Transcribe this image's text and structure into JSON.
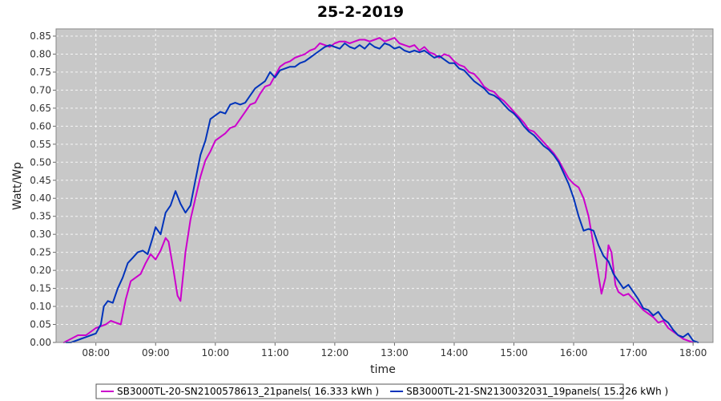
{
  "chart_data": {
    "type": "line",
    "title": "25-2-2019",
    "xlabel": "time",
    "ylabel": "Watt/Wp",
    "xlim": [
      "07:20",
      "18:20"
    ],
    "ylim": [
      0,
      0.87
    ],
    "x_ticks": [
      "08:00",
      "09:00",
      "10:00",
      "11:00",
      "12:00",
      "13:00",
      "14:00",
      "15:00",
      "16:00",
      "17:00",
      "18:00"
    ],
    "y_ticks": [
      "0.00",
      "0.05",
      "0.10",
      "0.15",
      "0.20",
      "0.25",
      "0.30",
      "0.35",
      "0.40",
      "0.45",
      "0.50",
      "0.55",
      "0.60",
      "0.65",
      "0.70",
      "0.75",
      "0.80",
      "0.85"
    ],
    "grid": true,
    "legend_position": "bottom",
    "background_color": "#c8c8c8",
    "series": [
      {
        "name": "SB3000TL-20-SN2100578613_21panels( 16.333 kWh )",
        "color": "#cc00cc",
        "points": [
          [
            "07:28",
            0.0
          ],
          [
            "07:35",
            0.01
          ],
          [
            "07:42",
            0.02
          ],
          [
            "07:50",
            0.02
          ],
          [
            "07:55",
            0.03
          ],
          [
            "08:00",
            0.04
          ],
          [
            "08:05",
            0.045
          ],
          [
            "08:10",
            0.05
          ],
          [
            "08:15",
            0.06
          ],
          [
            "08:20",
            0.055
          ],
          [
            "08:25",
            0.05
          ],
          [
            "08:30",
            0.12
          ],
          [
            "08:35",
            0.17
          ],
          [
            "08:40",
            0.18
          ],
          [
            "08:45",
            0.19
          ],
          [
            "08:50",
            0.22
          ],
          [
            "08:55",
            0.245
          ],
          [
            "09:00",
            0.23
          ],
          [
            "09:05",
            0.255
          ],
          [
            "09:10",
            0.29
          ],
          [
            "09:13",
            0.28
          ],
          [
            "09:18",
            0.2
          ],
          [
            "09:22",
            0.13
          ],
          [
            "09:25",
            0.115
          ],
          [
            "09:30",
            0.25
          ],
          [
            "09:35",
            0.34
          ],
          [
            "09:40",
            0.4
          ],
          [
            "09:45",
            0.46
          ],
          [
            "09:50",
            0.505
          ],
          [
            "09:55",
            0.53
          ],
          [
            "10:00",
            0.56
          ],
          [
            "10:05",
            0.57
          ],
          [
            "10:10",
            0.58
          ],
          [
            "10:15",
            0.595
          ],
          [
            "10:20",
            0.6
          ],
          [
            "10:25",
            0.62
          ],
          [
            "10:30",
            0.64
          ],
          [
            "10:35",
            0.66
          ],
          [
            "10:40",
            0.665
          ],
          [
            "10:45",
            0.69
          ],
          [
            "10:50",
            0.71
          ],
          [
            "10:55",
            0.715
          ],
          [
            "11:00",
            0.74
          ],
          [
            "11:05",
            0.765
          ],
          [
            "11:10",
            0.775
          ],
          [
            "11:15",
            0.78
          ],
          [
            "11:20",
            0.79
          ],
          [
            "11:25",
            0.795
          ],
          [
            "11:30",
            0.8
          ],
          [
            "11:35",
            0.81
          ],
          [
            "11:40",
            0.815
          ],
          [
            "11:45",
            0.83
          ],
          [
            "11:50",
            0.825
          ],
          [
            "11:55",
            0.82
          ],
          [
            "12:00",
            0.83
          ],
          [
            "12:05",
            0.835
          ],
          [
            "12:10",
            0.835
          ],
          [
            "12:15",
            0.83
          ],
          [
            "12:20",
            0.835
          ],
          [
            "12:25",
            0.84
          ],
          [
            "12:30",
            0.84
          ],
          [
            "12:35",
            0.835
          ],
          [
            "12:40",
            0.84
          ],
          [
            "12:45",
            0.845
          ],
          [
            "12:50",
            0.835
          ],
          [
            "12:55",
            0.84
          ],
          [
            "13:00",
            0.845
          ],
          [
            "13:05",
            0.83
          ],
          [
            "13:10",
            0.825
          ],
          [
            "13:15",
            0.82
          ],
          [
            "13:20",
            0.825
          ],
          [
            "13:25",
            0.81
          ],
          [
            "13:30",
            0.82
          ],
          [
            "13:35",
            0.805
          ],
          [
            "13:40",
            0.8
          ],
          [
            "13:45",
            0.79
          ],
          [
            "13:50",
            0.8
          ],
          [
            "13:55",
            0.795
          ],
          [
            "14:00",
            0.78
          ],
          [
            "14:05",
            0.77
          ],
          [
            "14:10",
            0.765
          ],
          [
            "14:15",
            0.75
          ],
          [
            "14:20",
            0.745
          ],
          [
            "14:25",
            0.73
          ],
          [
            "14:30",
            0.71
          ],
          [
            "14:35",
            0.7
          ],
          [
            "14:40",
            0.695
          ],
          [
            "14:45",
            0.68
          ],
          [
            "14:50",
            0.67
          ],
          [
            "14:55",
            0.655
          ],
          [
            "15:00",
            0.64
          ],
          [
            "15:05",
            0.625
          ],
          [
            "15:10",
            0.61
          ],
          [
            "15:15",
            0.59
          ],
          [
            "15:20",
            0.585
          ],
          [
            "15:25",
            0.57
          ],
          [
            "15:30",
            0.555
          ],
          [
            "15:35",
            0.54
          ],
          [
            "15:40",
            0.525
          ],
          [
            "15:45",
            0.505
          ],
          [
            "15:50",
            0.48
          ],
          [
            "15:55",
            0.455
          ],
          [
            "16:00",
            0.44
          ],
          [
            "16:05",
            0.43
          ],
          [
            "16:10",
            0.4
          ],
          [
            "16:15",
            0.35
          ],
          [
            "16:20",
            0.27
          ],
          [
            "16:25",
            0.185
          ],
          [
            "16:28",
            0.135
          ],
          [
            "16:32",
            0.18
          ],
          [
            "16:35",
            0.27
          ],
          [
            "16:38",
            0.25
          ],
          [
            "16:42",
            0.16
          ],
          [
            "16:45",
            0.14
          ],
          [
            "16:50",
            0.13
          ],
          [
            "16:55",
            0.135
          ],
          [
            "17:00",
            0.12
          ],
          [
            "17:05",
            0.105
          ],
          [
            "17:10",
            0.09
          ],
          [
            "17:15",
            0.08
          ],
          [
            "17:20",
            0.07
          ],
          [
            "17:25",
            0.055
          ],
          [
            "17:30",
            0.06
          ],
          [
            "17:35",
            0.04
          ],
          [
            "17:40",
            0.03
          ],
          [
            "17:45",
            0.02
          ],
          [
            "17:50",
            0.01
          ],
          [
            "17:55",
            0.005
          ],
          [
            "18:00",
            0.0
          ]
        ]
      },
      {
        "name": "SB3000TL-21-SN2130032031_19panels( 15.226 kWh )",
        "color": "#0033bb",
        "points": [
          [
            "07:30",
            0.0
          ],
          [
            "07:35",
            0.0
          ],
          [
            "07:40",
            0.005
          ],
          [
            "07:45",
            0.01
          ],
          [
            "07:50",
            0.015
          ],
          [
            "07:55",
            0.02
          ],
          [
            "08:00",
            0.025
          ],
          [
            "08:05",
            0.05
          ],
          [
            "08:08",
            0.1
          ],
          [
            "08:12",
            0.115
          ],
          [
            "08:17",
            0.11
          ],
          [
            "08:22",
            0.15
          ],
          [
            "08:27",
            0.18
          ],
          [
            "08:32",
            0.22
          ],
          [
            "08:37",
            0.235
          ],
          [
            "08:42",
            0.25
          ],
          [
            "08:47",
            0.255
          ],
          [
            "08:52",
            0.245
          ],
          [
            "08:57",
            0.29
          ],
          [
            "09:00",
            0.32
          ],
          [
            "09:05",
            0.3
          ],
          [
            "09:10",
            0.36
          ],
          [
            "09:15",
            0.38
          ],
          [
            "09:20",
            0.42
          ],
          [
            "09:25",
            0.385
          ],
          [
            "09:30",
            0.36
          ],
          [
            "09:35",
            0.38
          ],
          [
            "09:40",
            0.45
          ],
          [
            "09:45",
            0.52
          ],
          [
            "09:50",
            0.56
          ],
          [
            "09:55",
            0.62
          ],
          [
            "10:00",
            0.63
          ],
          [
            "10:05",
            0.64
          ],
          [
            "10:10",
            0.635
          ],
          [
            "10:15",
            0.66
          ],
          [
            "10:20",
            0.665
          ],
          [
            "10:25",
            0.66
          ],
          [
            "10:30",
            0.665
          ],
          [
            "10:35",
            0.685
          ],
          [
            "10:40",
            0.705
          ],
          [
            "10:45",
            0.715
          ],
          [
            "10:50",
            0.725
          ],
          [
            "10:55",
            0.75
          ],
          [
            "11:00",
            0.735
          ],
          [
            "11:05",
            0.755
          ],
          [
            "11:10",
            0.76
          ],
          [
            "11:15",
            0.765
          ],
          [
            "11:20",
            0.765
          ],
          [
            "11:25",
            0.775
          ],
          [
            "11:30",
            0.78
          ],
          [
            "11:35",
            0.79
          ],
          [
            "11:40",
            0.8
          ],
          [
            "11:45",
            0.81
          ],
          [
            "11:50",
            0.82
          ],
          [
            "11:55",
            0.825
          ],
          [
            "12:00",
            0.82
          ],
          [
            "12:05",
            0.815
          ],
          [
            "12:10",
            0.83
          ],
          [
            "12:15",
            0.82
          ],
          [
            "12:20",
            0.815
          ],
          [
            "12:25",
            0.825
          ],
          [
            "12:30",
            0.815
          ],
          [
            "12:35",
            0.83
          ],
          [
            "12:40",
            0.82
          ],
          [
            "12:45",
            0.815
          ],
          [
            "12:50",
            0.83
          ],
          [
            "12:55",
            0.825
          ],
          [
            "13:00",
            0.815
          ],
          [
            "13:05",
            0.82
          ],
          [
            "13:10",
            0.81
          ],
          [
            "13:15",
            0.805
          ],
          [
            "13:20",
            0.81
          ],
          [
            "13:25",
            0.805
          ],
          [
            "13:30",
            0.81
          ],
          [
            "13:35",
            0.8
          ],
          [
            "13:40",
            0.79
          ],
          [
            "13:45",
            0.795
          ],
          [
            "13:50",
            0.785
          ],
          [
            "13:55",
            0.775
          ],
          [
            "14:00",
            0.775
          ],
          [
            "14:05",
            0.76
          ],
          [
            "14:10",
            0.755
          ],
          [
            "14:15",
            0.74
          ],
          [
            "14:20",
            0.725
          ],
          [
            "14:25",
            0.715
          ],
          [
            "14:30",
            0.705
          ],
          [
            "14:35",
            0.69
          ],
          [
            "14:40",
            0.685
          ],
          [
            "14:45",
            0.675
          ],
          [
            "14:50",
            0.66
          ],
          [
            "14:55",
            0.645
          ],
          [
            "15:00",
            0.635
          ],
          [
            "15:05",
            0.62
          ],
          [
            "15:10",
            0.6
          ],
          [
            "15:15",
            0.585
          ],
          [
            "15:20",
            0.575
          ],
          [
            "15:25",
            0.56
          ],
          [
            "15:30",
            0.545
          ],
          [
            "15:35",
            0.535
          ],
          [
            "15:40",
            0.52
          ],
          [
            "15:45",
            0.5
          ],
          [
            "15:50",
            0.47
          ],
          [
            "15:55",
            0.44
          ],
          [
            "16:00",
            0.4
          ],
          [
            "16:05",
            0.35
          ],
          [
            "16:10",
            0.31
          ],
          [
            "16:15",
            0.315
          ],
          [
            "16:20",
            0.31
          ],
          [
            "16:25",
            0.27
          ],
          [
            "16:30",
            0.24
          ],
          [
            "16:35",
            0.225
          ],
          [
            "16:40",
            0.19
          ],
          [
            "16:45",
            0.17
          ],
          [
            "16:50",
            0.15
          ],
          [
            "16:55",
            0.16
          ],
          [
            "17:00",
            0.14
          ],
          [
            "17:05",
            0.12
          ],
          [
            "17:10",
            0.095
          ],
          [
            "17:15",
            0.09
          ],
          [
            "17:20",
            0.075
          ],
          [
            "17:25",
            0.085
          ],
          [
            "17:30",
            0.065
          ],
          [
            "17:35",
            0.055
          ],
          [
            "17:40",
            0.035
          ],
          [
            "17:45",
            0.02
          ],
          [
            "17:50",
            0.015
          ],
          [
            "17:55",
            0.025
          ],
          [
            "18:00",
            0.005
          ],
          [
            "18:05",
            0.0
          ]
        ]
      }
    ]
  }
}
